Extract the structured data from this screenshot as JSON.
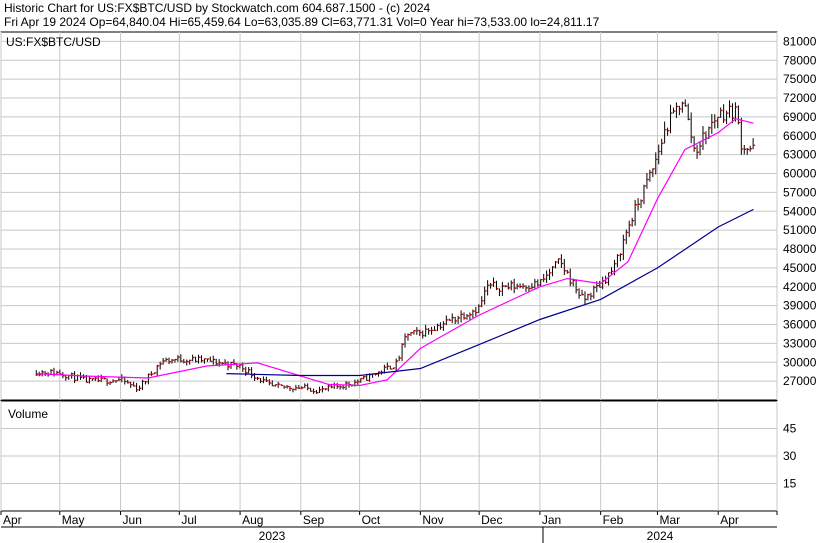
{
  "header": {
    "line1": "Historic Chart for US:FX$BTC/USD by Stockwatch.com 604.687.1500 - (c) 2024",
    "line2": "Fri Apr 19 2024    Op=64,840.04   Hi=65,459.64   Lo=63,035.89   Cl=63,771.31   Vol=0   Year hi=73,533.00   lo=24,811.17"
  },
  "chart_data": [
    {
      "type": "ohlc",
      "symbol": "US:FX$BTC/USD",
      "ylim": [
        24000,
        82500
      ],
      "y_ticks": [
        27000,
        30000,
        33000,
        36000,
        39000,
        42000,
        45000,
        48000,
        51000,
        54000,
        57000,
        60000,
        63000,
        66000,
        69000,
        72000,
        75000,
        78000,
        81000
      ],
      "months": [
        "Apr",
        "May",
        "Jun",
        "Jul",
        "Aug",
        "Sep",
        "Oct",
        "Nov",
        "Dec",
        "Jan",
        "Feb",
        "Mar",
        "Apr"
      ],
      "years": [
        "2023",
        "2024"
      ],
      "x": [
        "2023-04-19",
        "2023-05-01",
        "2023-05-15",
        "2023-06-01",
        "2023-06-10",
        "2023-06-22",
        "2023-07-01",
        "2023-07-14",
        "2023-08-01",
        "2023-08-17",
        "2023-09-01",
        "2023-09-11",
        "2023-10-01",
        "2023-10-20",
        "2023-10-25",
        "2023-11-01",
        "2023-11-15",
        "2023-12-01",
        "2023-12-05",
        "2023-12-15",
        "2024-01-01",
        "2024-01-11",
        "2024-01-20",
        "2024-01-23",
        "2024-02-01",
        "2024-02-08",
        "2024-02-15",
        "2024-02-28",
        "2024-03-05",
        "2024-03-14",
        "2024-03-20",
        "2024-04-01",
        "2024-04-10",
        "2024-04-13",
        "2024-04-19"
      ],
      "close": [
        28500,
        28300,
        27000,
        27200,
        25800,
        30200,
        30500,
        30300,
        29400,
        26100,
        26000,
        25500,
        27000,
        29800,
        34500,
        34600,
        36500,
        38700,
        42000,
        42000,
        42500,
        46000,
        41500,
        39800,
        42500,
        45000,
        51500,
        61000,
        67000,
        72000,
        63500,
        69500,
        70000,
        64500,
        63771
      ],
      "series": [
        {
          "name": "",
          "x": [
            "2023-04-19",
            "2023-05-15",
            "2023-06-15",
            "2023-07-15",
            "2023-08-10",
            "2023-09-01",
            "2023-09-15",
            "2023-10-01",
            "2023-10-15",
            "2023-11-01",
            "2023-12-01",
            "2024-01-01",
            "2024-01-15",
            "2024-02-01",
            "2024-02-15",
            "2024-03-01",
            "2024-03-15",
            "2024-04-01",
            "2024-04-10",
            "2024-04-19"
          ],
          "values": [
            28200,
            27800,
            27500,
            29400,
            29900,
            27800,
            26500,
            26300,
            27200,
            32200,
            37500,
            42000,
            43300,
            42500,
            46000,
            56000,
            63800,
            66500,
            68700,
            68000
          ],
          "color": "#ff00ff"
        },
        {
          "name": "",
          "x": [
            "2023-07-25",
            "2023-09-01",
            "2023-10-01",
            "2023-11-01",
            "2023-12-01",
            "2024-01-01",
            "2024-02-01",
            "2024-03-01",
            "2024-04-01",
            "2024-04-19"
          ],
          "values": [
            28200,
            27900,
            27900,
            29000,
            32800,
            36800,
            40000,
            45000,
            51500,
            54300
          ],
          "color": "#00008b"
        }
      ]
    },
    {
      "type": "bar",
      "title": "Volume",
      "y_ticks": [
        15,
        30,
        45
      ],
      "ylim": [
        0,
        60
      ],
      "values": []
    }
  ]
}
